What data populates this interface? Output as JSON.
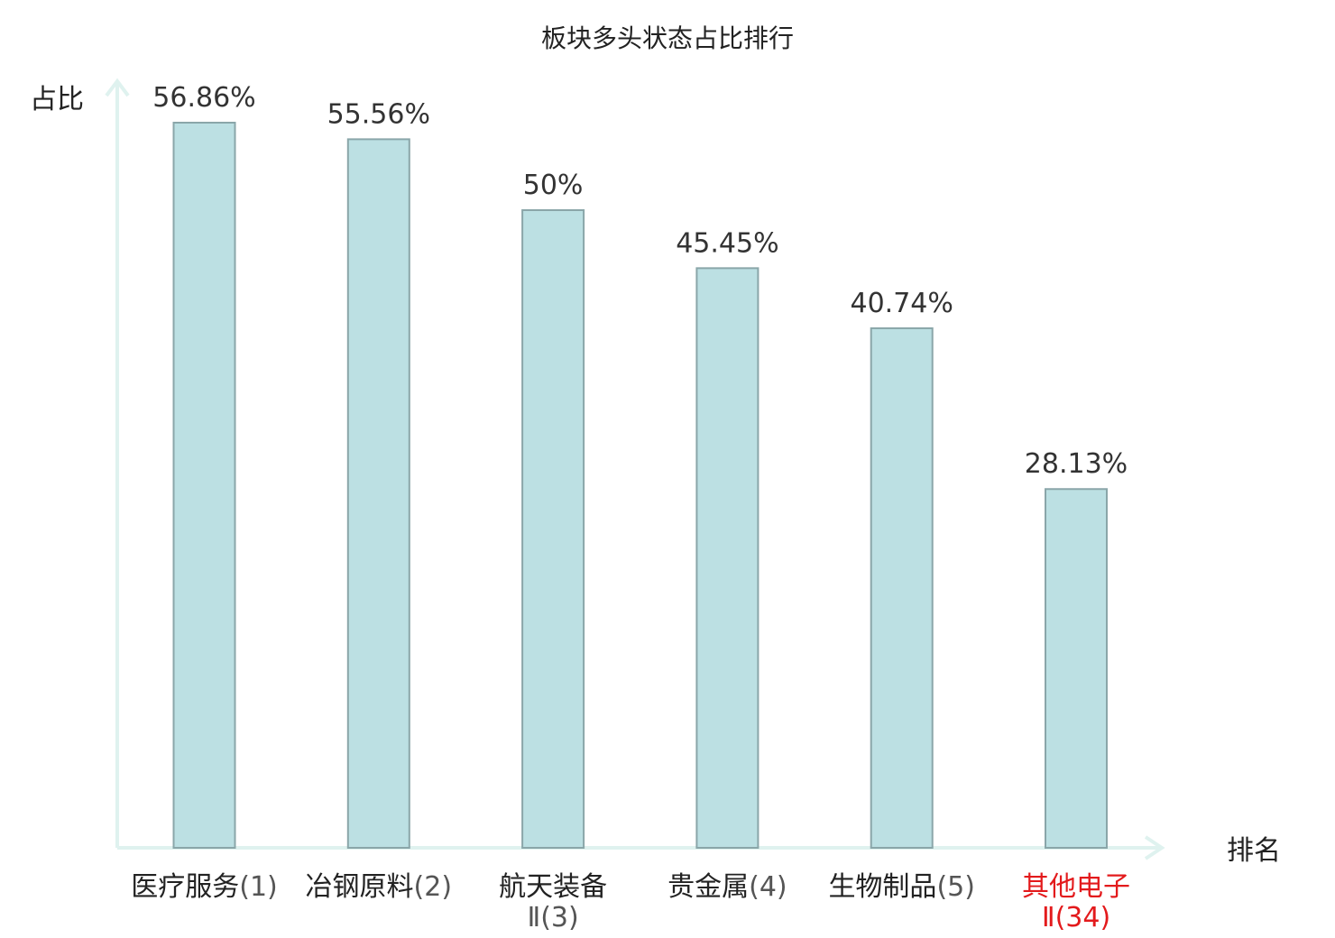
{
  "chart_data": {
    "type": "bar",
    "title": "板块多头状态占比排行",
    "ylabel": "占比",
    "xlabel": "排名",
    "categories": [
      {
        "name": "医疗服务",
        "rank": "(1)"
      },
      {
        "name": "冶钢原料",
        "rank": "(2)"
      },
      {
        "name": "航天装备",
        "rank": "Ⅱ(3)"
      },
      {
        "name": "贵金属",
        "rank": "(4)"
      },
      {
        "name": "生物制品",
        "rank": "(5)"
      },
      {
        "name": "其他电子",
        "rank": "Ⅱ(34)"
      }
    ],
    "values": [
      56.86,
      55.56,
      50,
      45.45,
      40.74,
      28.13
    ],
    "value_labels": [
      "56.86%",
      "55.56%",
      "50%",
      "45.45%",
      "40.74%",
      "28.13%"
    ],
    "ylim": [
      0,
      60
    ],
    "grid": false,
    "highlight_index": 5,
    "colors": {
      "bar_fill": "#bce0e3",
      "bar_stroke": "#8aa6a9",
      "axis": "#dff2ef",
      "text": "#333333",
      "highlight": "#e31a1c"
    }
  }
}
